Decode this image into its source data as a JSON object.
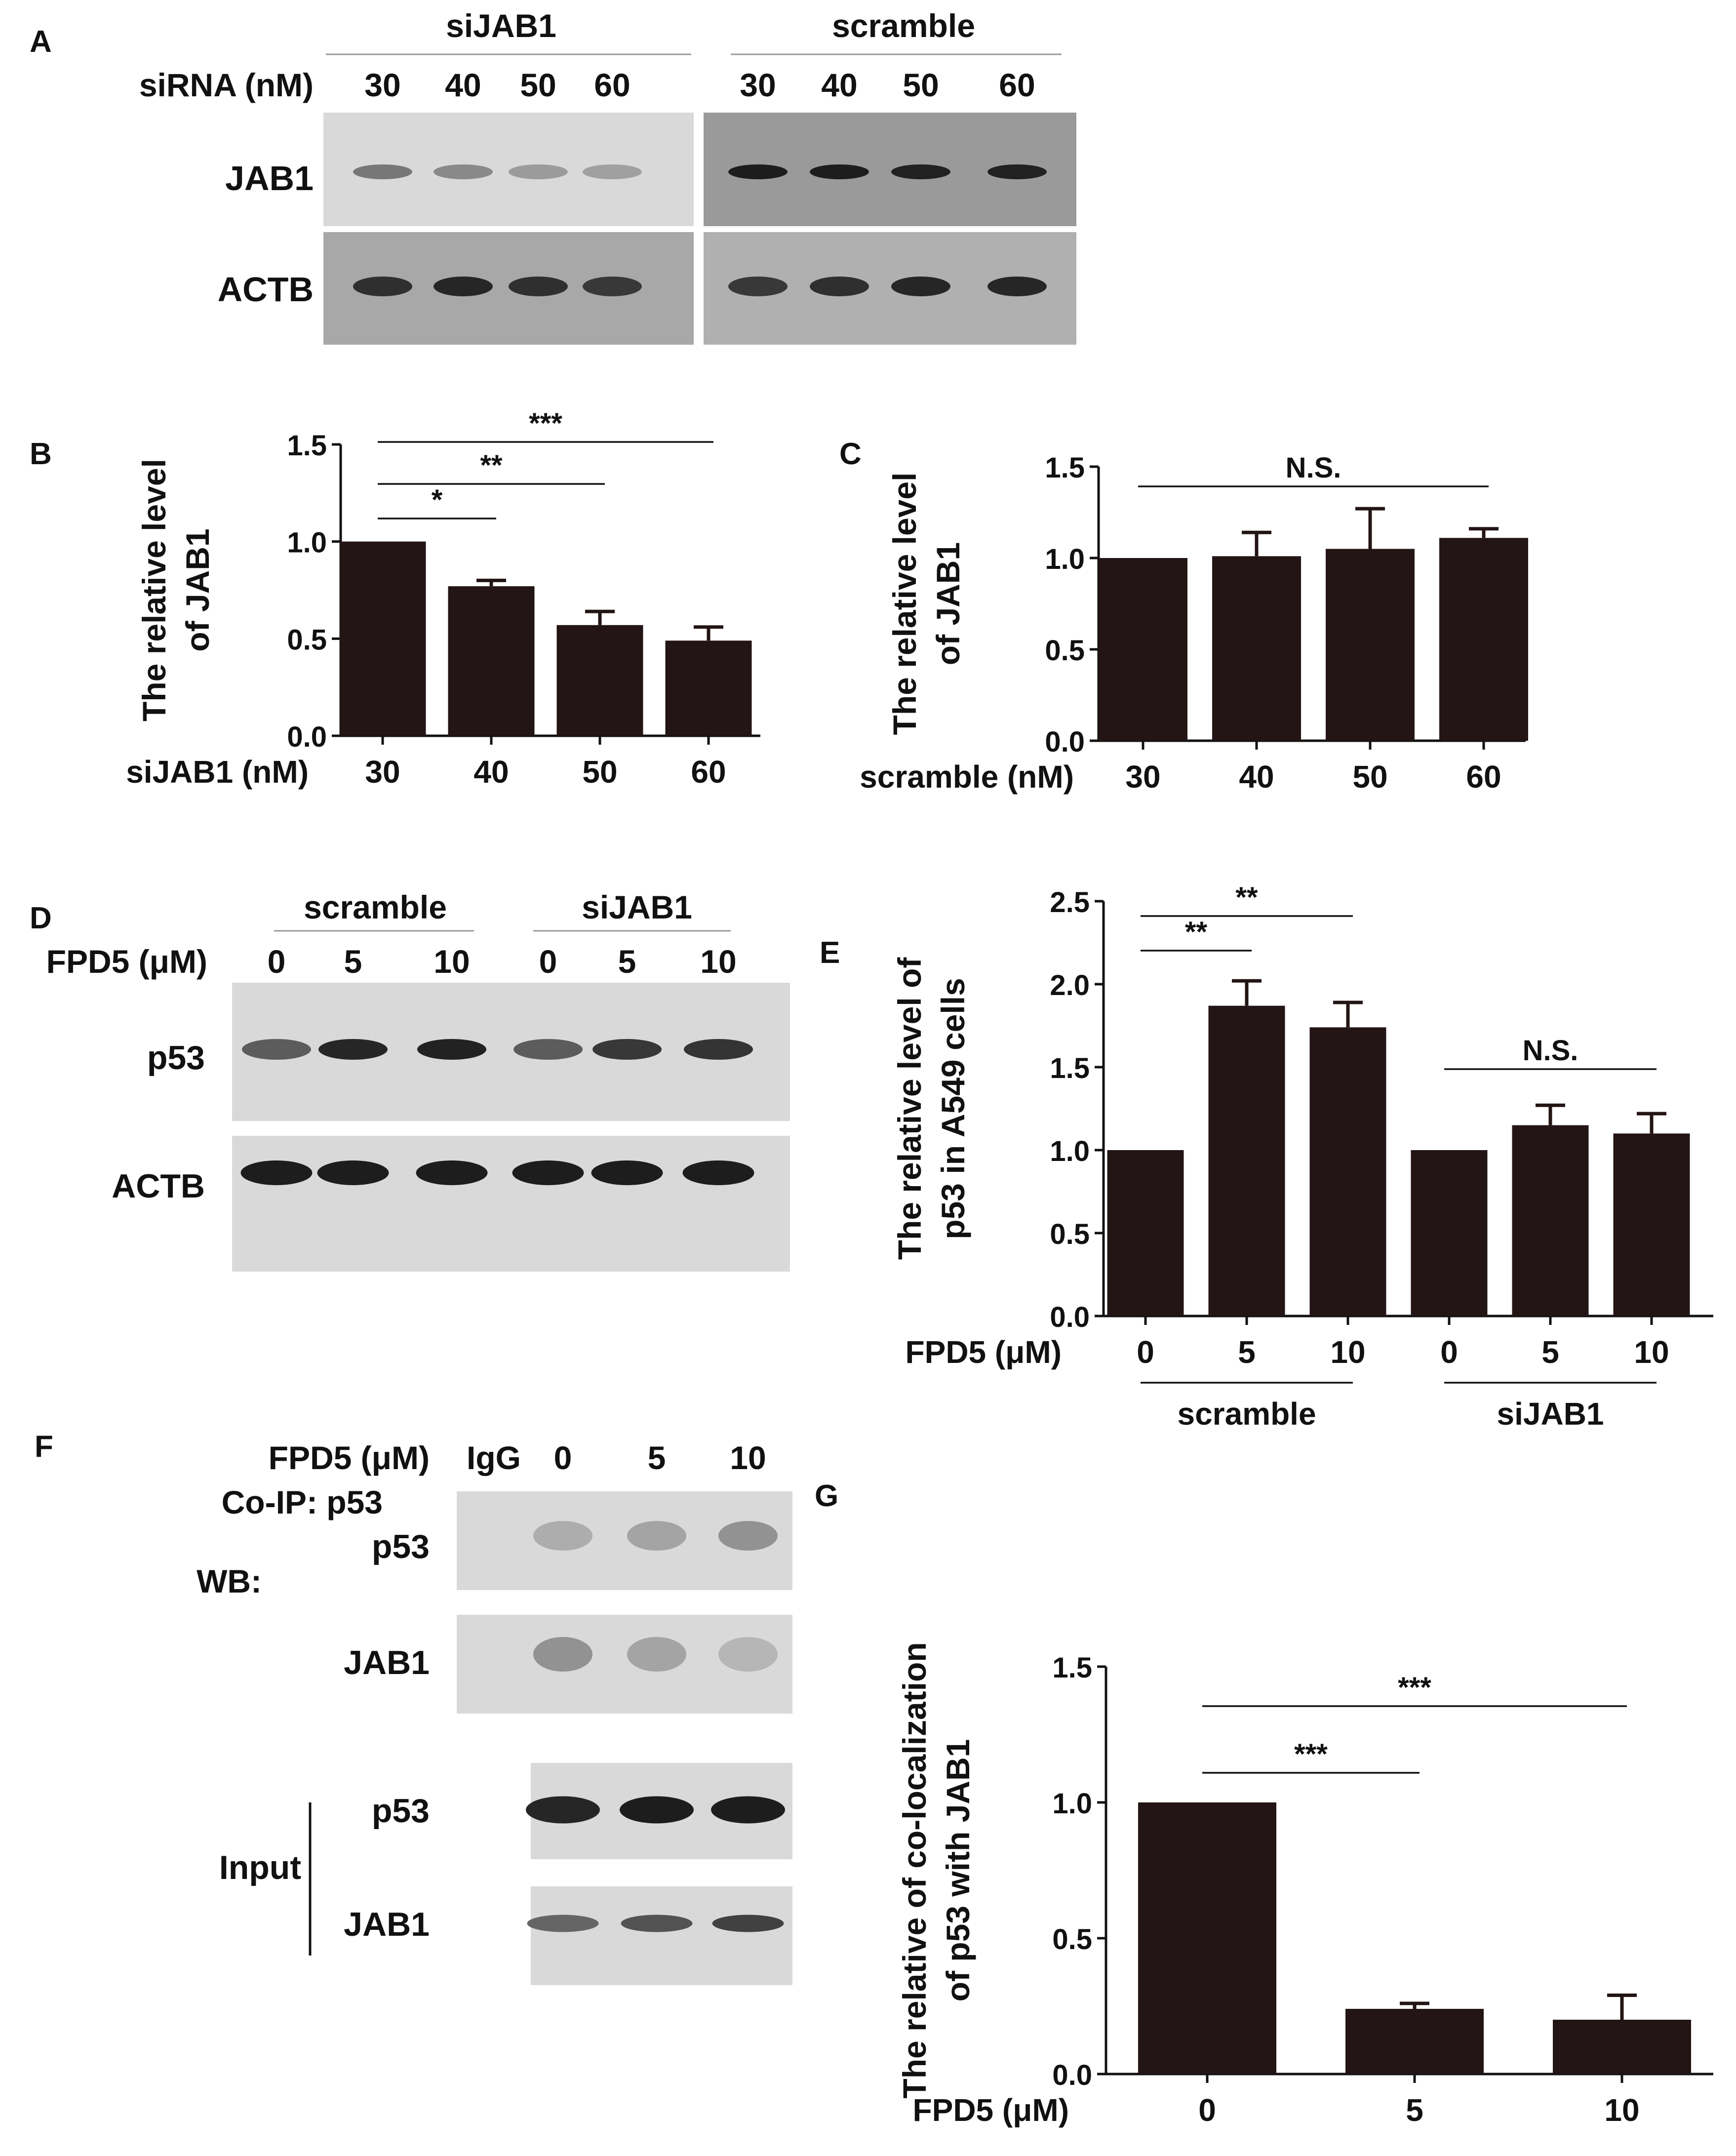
{
  "colors": {
    "bar": "#231515",
    "text": "#111111",
    "blot_background": "#d9d9d9",
    "band": "#1f1f1f"
  },
  "panels": {
    "A": {
      "letter": "A",
      "group_labels": [
        "siJAB1",
        "scramble"
      ],
      "conc_label": "siRNA (nM)",
      "lane_labels": [
        "30",
        "40",
        "50",
        "60",
        "30",
        "40",
        "50",
        "60"
      ],
      "row_labels": [
        "JAB1",
        "ACTB"
      ],
      "band_intensity": {
        "JAB1": [
          0.45,
          0.35,
          0.25,
          0.22,
          0.95,
          0.95,
          0.93,
          0.93
        ],
        "ACTB": [
          0.85,
          0.9,
          0.85,
          0.8,
          0.8,
          0.85,
          0.9,
          0.9
        ]
      }
    },
    "B": {
      "letter": "B"
    },
    "C": {
      "letter": "C"
    },
    "D": {
      "letter": "D",
      "group_labels": [
        "scramble",
        "siJAB1"
      ],
      "conc_label": "FPD5 (μM)",
      "lane_labels": [
        "0",
        "5",
        "10",
        "0",
        "5",
        "10"
      ],
      "row_labels": [
        "p53",
        "ACTB"
      ],
      "band_intensity": {
        "p53": [
          0.6,
          0.9,
          0.92,
          0.6,
          0.8,
          0.82
        ],
        "ACTB": [
          0.95,
          0.95,
          0.95,
          0.95,
          0.95,
          0.95
        ]
      }
    },
    "E": {
      "letter": "E",
      "group_labels": [
        "scramble",
        "siJAB1"
      ]
    },
    "F": {
      "letter": "F",
      "conc_label": "FPD5 (μM)",
      "lane_labels": [
        "IgG",
        "0",
        "5",
        "10"
      ],
      "coip_label": "Co-IP: p53",
      "wb_label": "WB:",
      "input_label": "Input",
      "row_labels": [
        "p53",
        "JAB1",
        "p53",
        "JAB1"
      ],
      "band_intensity": {
        "coip_p53": [
          0.0,
          0.15,
          0.2,
          0.3
        ],
        "coip_JAB1": [
          0.0,
          0.3,
          0.2,
          0.1
        ],
        "input_p53": [
          0.9,
          0.95,
          0.95
        ],
        "input_JAB1": [
          0.55,
          0.65,
          0.75
        ]
      }
    },
    "G": {
      "letter": "G"
    }
  },
  "chart_data": [
    {
      "panel": "B",
      "type": "bar",
      "categories": [
        "30",
        "40",
        "50",
        "60"
      ],
      "values": [
        1.0,
        0.77,
        0.57,
        0.49
      ],
      "errors": [
        0.0,
        0.03,
        0.07,
        0.07
      ],
      "ylabel_line1": "The relative level",
      "ylabel_line2": "of JAB1",
      "xlabel": "siJAB1 (nM)",
      "ylim": [
        0,
        1.5
      ],
      "yticks": [
        "0.0",
        "0.5",
        "1.0",
        "1.5"
      ],
      "significance": [
        {
          "from": 0,
          "to": 1,
          "label": "*"
        },
        {
          "from": 0,
          "to": 2,
          "label": "**"
        },
        {
          "from": 0,
          "to": 3,
          "label": "***"
        }
      ]
    },
    {
      "panel": "C",
      "type": "bar",
      "categories": [
        "30",
        "40",
        "50",
        "60"
      ],
      "values": [
        1.0,
        1.01,
        1.05,
        1.11
      ],
      "errors": [
        0.0,
        0.13,
        0.22,
        0.05
      ],
      "ylabel_line1": "The relative level",
      "ylabel_line2": "of JAB1",
      "xlabel": "scramble (nM)",
      "ylim": [
        0,
        1.5
      ],
      "yticks": [
        "0.0",
        "0.5",
        "1.0",
        "1.5"
      ],
      "significance": [
        {
          "from": 0,
          "to": 3,
          "label": "N.S."
        }
      ]
    },
    {
      "panel": "E",
      "type": "bar",
      "categories": [
        "0",
        "5",
        "10",
        "0",
        "5",
        "10"
      ],
      "values": [
        1.0,
        1.87,
        1.74,
        1.0,
        1.15,
        1.1
      ],
      "errors": [
        0.0,
        0.15,
        0.15,
        0.0,
        0.12,
        0.12
      ],
      "ylabel_line1": "The relative level of",
      "ylabel_line2": "p53 in A549 cells",
      "xlabel": "FPD5 (μM)",
      "ylim": [
        0,
        2.5
      ],
      "yticks": [
        "0.0",
        "0.5",
        "1.0",
        "1.5",
        "2.0",
        "2.5"
      ],
      "groups": [
        "scramble",
        "siJAB1"
      ],
      "significance": [
        {
          "from": 0,
          "to": 1,
          "label": "**"
        },
        {
          "from": 0,
          "to": 2,
          "label": "**"
        },
        {
          "from": 3,
          "to": 5,
          "label": "N.S."
        }
      ]
    },
    {
      "panel": "G",
      "type": "bar",
      "categories": [
        "0",
        "5",
        "10"
      ],
      "values": [
        1.0,
        0.24,
        0.2
      ],
      "errors": [
        0.0,
        0.02,
        0.09
      ],
      "ylabel_line1": "The relative of co-localization",
      "ylabel_line2": "of p53 with JAB1",
      "xlabel": "FPD5 (μM)",
      "ylim": [
        0,
        1.5
      ],
      "yticks": [
        "0.0",
        "0.5",
        "1.0",
        "1.5"
      ],
      "significance": [
        {
          "from": 0,
          "to": 1,
          "label": "***"
        },
        {
          "from": 0,
          "to": 2,
          "label": "***"
        }
      ]
    }
  ]
}
